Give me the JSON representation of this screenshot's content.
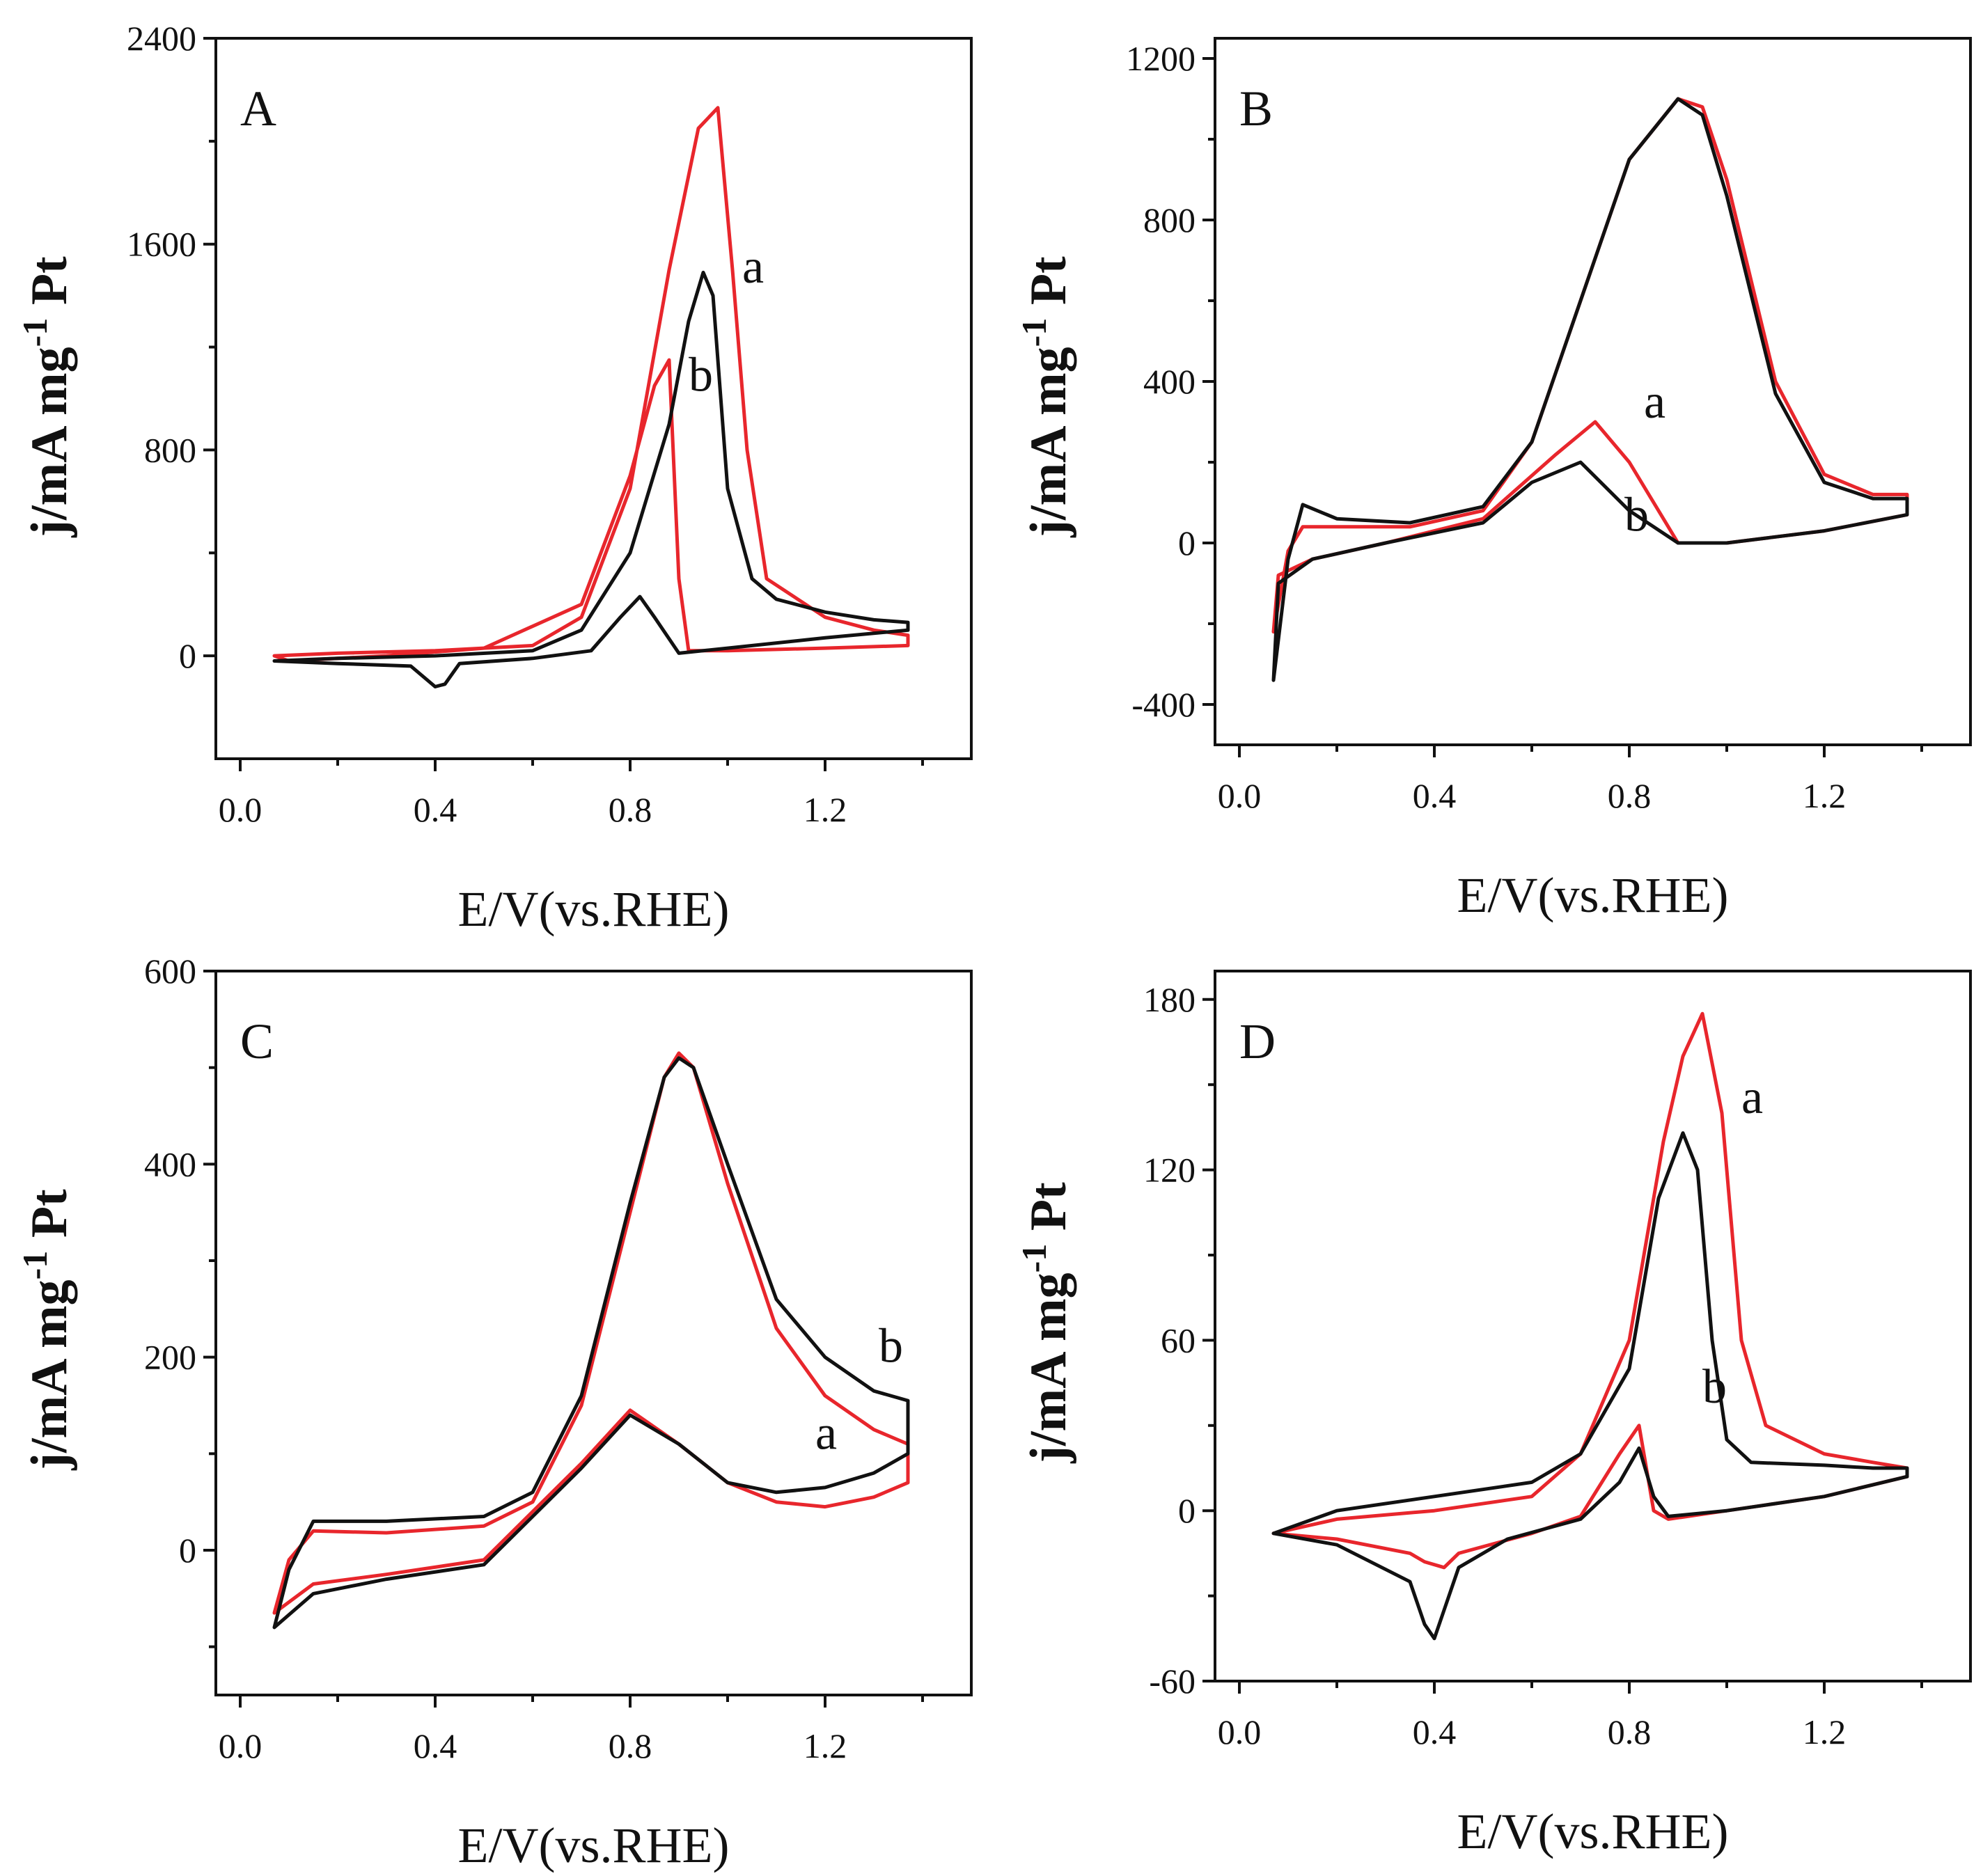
{
  "colors": {
    "a": "#e8262c",
    "b": "#111111",
    "axis": "#111111"
  },
  "chart_data": [
    {
      "type": "line",
      "panel_label": "A",
      "xlabel": "E/V(vs.RHE)",
      "ylabel_parts": [
        "j/mA mg",
        "-1",
        " Pt"
      ],
      "xlim": [
        -0.05,
        1.5
      ],
      "ylim": [
        -400,
        2400
      ],
      "xticks": [
        0.0,
        0.4,
        0.8,
        1.2
      ],
      "xtick_labels": [
        "0.0",
        "0.4",
        "0.8",
        "1.2"
      ],
      "yticks": [
        0,
        800,
        1600,
        2400
      ],
      "ytick_labels": [
        "0",
        "800",
        "1600",
        "2400"
      ],
      "series": [
        {
          "name": "a",
          "color": "#e8262c",
          "x": [
            0.07,
            0.2,
            0.4,
            0.6,
            0.7,
            0.8,
            0.88,
            0.94,
            0.98,
            1.01,
            1.04,
            1.08,
            1.2,
            1.3,
            1.37,
            1.37,
            1.2,
            1.0,
            0.92,
            0.9,
            0.88,
            0.85,
            0.8,
            0.7,
            0.5,
            0.3,
            0.1,
            0.07
          ],
          "y": [
            0,
            10,
            20,
            40,
            150,
            650,
            1500,
            2050,
            2130,
            1500,
            800,
            300,
            150,
            100,
            80,
            40,
            30,
            20,
            20,
            300,
            1150,
            1050,
            700,
            200,
            30,
            0,
            -20,
            0
          ]
        },
        {
          "name": "b",
          "color": "#111111",
          "x": [
            0.07,
            0.2,
            0.4,
            0.6,
            0.7,
            0.8,
            0.88,
            0.92,
            0.95,
            0.97,
            1.0,
            1.05,
            1.1,
            1.2,
            1.3,
            1.37,
            1.37,
            1.2,
            1.0,
            0.9,
            0.85,
            0.82,
            0.78,
            0.72,
            0.6,
            0.45,
            0.42,
            0.4,
            0.35,
            0.2,
            0.07
          ],
          "y": [
            -20,
            -10,
            0,
            20,
            100,
            400,
            900,
            1300,
            1490,
            1400,
            650,
            300,
            220,
            170,
            140,
            130,
            100,
            70,
            30,
            10,
            150,
            230,
            150,
            20,
            -10,
            -30,
            -110,
            -120,
            -40,
            -30,
            -20
          ]
        }
      ],
      "curve_labels": [
        {
          "text": "a",
          "x": 1.03,
          "y": 1450
        },
        {
          "text": "b",
          "x": 0.92,
          "y": 1030
        }
      ]
    },
    {
      "type": "line",
      "panel_label": "B",
      "xlabel": "E/V(vs.RHE)",
      "ylabel_parts": [
        "j/mA mg",
        "-1",
        " Pt"
      ],
      "xlim": [
        -0.05,
        1.5
      ],
      "ylim": [
        -500,
        1250
      ],
      "xticks": [
        0.0,
        0.4,
        0.8,
        1.2
      ],
      "xtick_labels": [
        "0.0",
        "0.4",
        "0.8",
        "1.2"
      ],
      "yticks": [
        -400,
        0,
        400,
        800,
        1200
      ],
      "ytick_labels": [
        "-400",
        "0",
        "400",
        "800",
        "1200"
      ],
      "series": [
        {
          "name": "a",
          "color": "#e8262c",
          "x": [
            0.07,
            0.1,
            0.13,
            0.2,
            0.35,
            0.5,
            0.6,
            0.7,
            0.8,
            0.9,
            0.95,
            1.0,
            1.1,
            1.2,
            1.3,
            1.37,
            1.37,
            1.2,
            1.0,
            0.9,
            0.8,
            0.73,
            0.65,
            0.5,
            0.3,
            0.15,
            0.08,
            0.07
          ],
          "y": [
            -220,
            -20,
            40,
            40,
            40,
            80,
            250,
            600,
            950,
            1100,
            1080,
            900,
            400,
            170,
            120,
            120,
            70,
            30,
            0,
            0,
            200,
            300,
            220,
            60,
            0,
            -40,
            -80,
            -220
          ]
        },
        {
          "name": "b",
          "color": "#111111",
          "x": [
            0.07,
            0.1,
            0.13,
            0.2,
            0.35,
            0.5,
            0.6,
            0.7,
            0.8,
            0.9,
            0.95,
            1.0,
            1.1,
            1.2,
            1.3,
            1.37,
            1.37,
            1.2,
            1.0,
            0.9,
            0.8,
            0.7,
            0.6,
            0.5,
            0.3,
            0.15,
            0.08,
            0.07
          ],
          "y": [
            -340,
            -40,
            95,
            60,
            50,
            90,
            250,
            600,
            950,
            1100,
            1060,
            860,
            370,
            150,
            110,
            110,
            70,
            30,
            0,
            0,
            80,
            200,
            150,
            50,
            0,
            -40,
            -100,
            -340
          ]
        }
      ],
      "curve_labels": [
        {
          "text": "a",
          "x": 0.83,
          "y": 310
        },
        {
          "text": "b",
          "x": 0.79,
          "y": 30
        }
      ]
    },
    {
      "type": "line",
      "panel_label": "C",
      "xlabel": "E/V(vs.RHE)",
      "ylabel_parts": [
        "j/mA mg",
        "-1",
        " Pt"
      ],
      "xlim": [
        -0.05,
        1.5
      ],
      "ylim": [
        -150,
        600
      ],
      "xticks": [
        0.0,
        0.4,
        0.8,
        1.2
      ],
      "xtick_labels": [
        "0.0",
        "0.4",
        "0.8",
        "1.2"
      ],
      "yticks": [
        0,
        200,
        400,
        600
      ],
      "ytick_labels": [
        "0",
        "200",
        "400",
        "600"
      ],
      "series": [
        {
          "name": "a",
          "color": "#e8262c",
          "x": [
            0.07,
            0.1,
            0.15,
            0.3,
            0.5,
            0.6,
            0.7,
            0.8,
            0.87,
            0.9,
            0.93,
            1.0,
            1.1,
            1.2,
            1.3,
            1.37,
            1.37,
            1.3,
            1.2,
            1.1,
            1.0,
            0.9,
            0.8,
            0.7,
            0.6,
            0.5,
            0.3,
            0.15,
            0.07
          ],
          "y": [
            -65,
            -10,
            20,
            18,
            25,
            50,
            150,
            350,
            490,
            515,
            500,
            380,
            230,
            160,
            125,
            110,
            70,
            55,
            45,
            50,
            70,
            110,
            145,
            90,
            40,
            -10,
            -25,
            -35,
            -65
          ]
        },
        {
          "name": "b",
          "color": "#111111",
          "x": [
            0.07,
            0.1,
            0.15,
            0.3,
            0.5,
            0.6,
            0.7,
            0.8,
            0.87,
            0.9,
            0.93,
            1.0,
            1.1,
            1.2,
            1.3,
            1.37,
            1.37,
            1.3,
            1.2,
            1.1,
            1.0,
            0.9,
            0.8,
            0.7,
            0.6,
            0.5,
            0.3,
            0.15,
            0.07
          ],
          "y": [
            -80,
            -20,
            30,
            30,
            35,
            60,
            160,
            360,
            490,
            510,
            500,
            400,
            260,
            200,
            165,
            155,
            100,
            80,
            65,
            60,
            70,
            110,
            140,
            85,
            35,
            -15,
            -30,
            -45,
            -80
          ]
        }
      ],
      "curve_labels": [
        {
          "text": "b",
          "x": 1.31,
          "y": 195
        },
        {
          "text": "a",
          "x": 1.18,
          "y": 105
        }
      ]
    },
    {
      "type": "line",
      "panel_label": "D",
      "xlabel": "E/V(vs.RHE)",
      "ylabel_parts": [
        "j/mA mg",
        "-1",
        " Pt"
      ],
      "xlim": [
        -0.05,
        1.5
      ],
      "ylim": [
        -60,
        190
      ],
      "xticks": [
        0.0,
        0.4,
        0.8,
        1.2
      ],
      "xtick_labels": [
        "0.0",
        "0.4",
        "0.8",
        "1.2"
      ],
      "yticks": [
        -60,
        0,
        60,
        120,
        180
      ],
      "ytick_labels": [
        "-60",
        "0",
        "60",
        "120",
        "180"
      ],
      "series": [
        {
          "name": "a",
          "color": "#e8262c",
          "x": [
            0.07,
            0.2,
            0.4,
            0.6,
            0.7,
            0.8,
            0.87,
            0.91,
            0.95,
            0.99,
            1.03,
            1.08,
            1.2,
            1.3,
            1.37,
            1.37,
            1.2,
            1.0,
            0.88,
            0.85,
            0.82,
            0.78,
            0.7,
            0.6,
            0.45,
            0.42,
            0.38,
            0.35,
            0.2,
            0.07
          ],
          "y": [
            -8,
            -3,
            0,
            5,
            20,
            60,
            130,
            160,
            175,
            140,
            60,
            30,
            20,
            17,
            15,
            12,
            5,
            0,
            -3,
            0,
            30,
            20,
            -2,
            -8,
            -15,
            -20,
            -18,
            -15,
            -10,
            -8
          ]
        },
        {
          "name": "b",
          "color": "#111111",
          "x": [
            0.07,
            0.2,
            0.4,
            0.6,
            0.7,
            0.8,
            0.86,
            0.91,
            0.94,
            0.97,
            1.0,
            1.05,
            1.2,
            1.3,
            1.37,
            1.37,
            1.2,
            1.0,
            0.88,
            0.85,
            0.82,
            0.78,
            0.7,
            0.55,
            0.45,
            0.42,
            0.4,
            0.38,
            0.35,
            0.2,
            0.07
          ],
          "y": [
            -8,
            0,
            5,
            10,
            20,
            50,
            110,
            133,
            120,
            60,
            25,
            17,
            16,
            15,
            15,
            12,
            5,
            0,
            -2,
            5,
            22,
            10,
            -3,
            -10,
            -20,
            -35,
            -45,
            -40,
            -25,
            -12,
            -8
          ]
        }
      ],
      "curve_labels": [
        {
          "text": "a",
          "x": 1.03,
          "y": 140
        },
        {
          "text": "b",
          "x": 0.95,
          "y": 38
        }
      ]
    }
  ]
}
